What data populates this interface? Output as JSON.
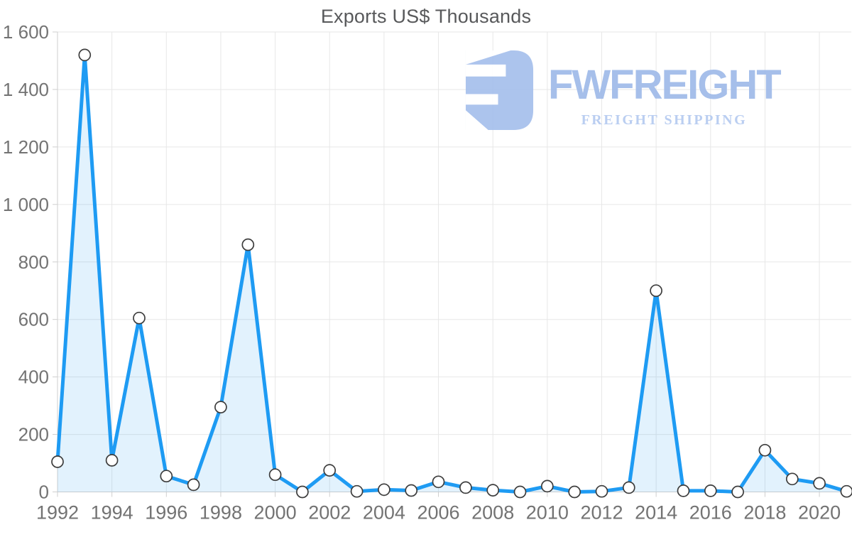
{
  "title": "Exports US$ Thousands",
  "logo": {
    "brand": "FWFREIGHT",
    "tagline": "FREIGHT SHIPPING",
    "mark_color": "#a5bfec",
    "brand_color": "#9fbae9",
    "tagline_color": "#b5caf0"
  },
  "colors": {
    "line": "#1e9bf3",
    "area_fill": "rgba(30,155,243,0.13)",
    "grid": "#e7e7e7",
    "axis": "#cfcfcf",
    "tick_label": "#737373",
    "title": "#58595b",
    "marker_fill": "#ffffff",
    "marker_stroke": "#3d3d3d"
  },
  "chart_data": {
    "type": "area",
    "title": "Exports US$ Thousands",
    "xlabel": "",
    "ylabel": "",
    "x": [
      1992,
      1993,
      1994,
      1995,
      1996,
      1997,
      1998,
      1999,
      2000,
      2001,
      2002,
      2003,
      2004,
      2005,
      2006,
      2007,
      2008,
      2009,
      2010,
      2011,
      2012,
      2013,
      2014,
      2015,
      2016,
      2017,
      2018,
      2019,
      2020,
      2021
    ],
    "values": [
      105,
      1520,
      110,
      605,
      55,
      25,
      295,
      860,
      60,
      0,
      75,
      2,
      8,
      5,
      35,
      15,
      6,
      0,
      20,
      0,
      2,
      15,
      700,
      4,
      4,
      0,
      145,
      45,
      30,
      2
    ],
    "ylim": [
      0,
      1600
    ],
    "y_ticks": [
      0,
      200,
      400,
      600,
      800,
      1000,
      1200,
      1400,
      1600
    ],
    "y_tick_labels": [
      "0",
      "200",
      "400",
      "600",
      "800",
      "1 000",
      "1 200",
      "1 400",
      "1 600"
    ],
    "x_tick_labels": [
      "1992",
      "1994",
      "1996",
      "1998",
      "2000",
      "2002",
      "2004",
      "2006",
      "2008",
      "2010",
      "2012",
      "2014",
      "2016",
      "2018",
      "2020"
    ],
    "grid": true,
    "legend_position": "none",
    "marker": "circle"
  }
}
